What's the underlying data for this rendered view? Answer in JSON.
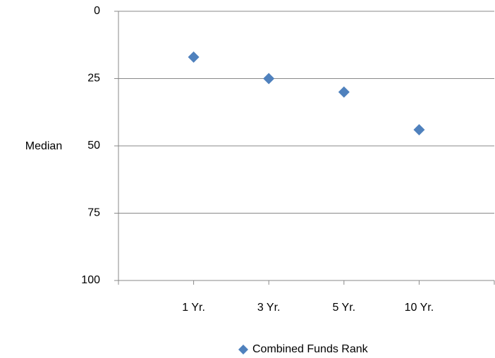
{
  "chart_data": {
    "type": "scatter",
    "y_label": "Median",
    "categories": [
      "1 Yr.",
      "3 Yr.",
      "5 Yr.",
      "10 Yr."
    ],
    "series": [
      {
        "name": "Combined Funds Rank",
        "color": "#4f81bd",
        "values": [
          17,
          25,
          30,
          44
        ]
      }
    ],
    "ylim": [
      0,
      100
    ],
    "yticks": [
      0,
      25,
      50,
      75,
      100
    ],
    "y_inverted": true,
    "grid": true,
    "legend": "bottom"
  }
}
